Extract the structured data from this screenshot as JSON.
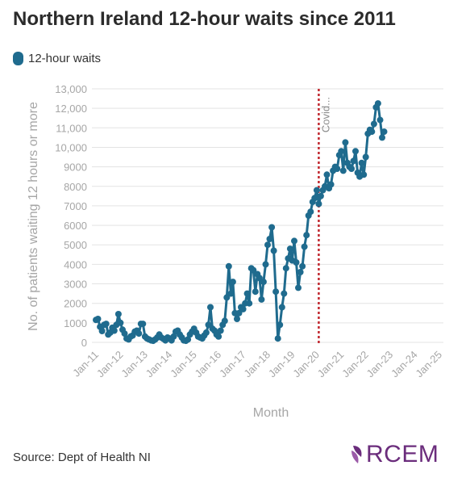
{
  "title": "Northern Ireland 12-hour waits since 2011",
  "legend": {
    "label": "12-hour waits"
  },
  "colors": {
    "series": "#1f6b8e",
    "covid_line": "#c0262d",
    "grid": "#e3e3e3",
    "axis_text": "#a6a6a6",
    "logo": "#6b2d7c"
  },
  "footer": {
    "source": "Source: Dept of Health NI"
  },
  "logo": {
    "text": "RCEM",
    "icon": "rcem-leaf-icon"
  },
  "chart_data": {
    "type": "line",
    "title": "Northern Ireland 12-hour waits since 2011",
    "xlabel": "Month",
    "ylabel": "No. of patients waiting 12 hours or more",
    "ylim": [
      0,
      13000
    ],
    "yticks": [
      0,
      1000,
      2000,
      3000,
      4000,
      5000,
      6000,
      7000,
      8000,
      9000,
      10000,
      11000,
      12000,
      13000
    ],
    "ytick_labels": [
      "0",
      "1000",
      "2000",
      "3000",
      "4000",
      "5000",
      "6000",
      "7000",
      "8000",
      "9000",
      "10,000",
      "11,000",
      "12,000",
      "13,000"
    ],
    "xticks": [
      "Jan-11",
      "Jan-12",
      "Jan-13",
      "Jan-14",
      "Jan-15",
      "Jan-16",
      "Jan-17",
      "Jan-18",
      "Jan-19",
      "Jan-20",
      "Jan-21",
      "Jan-22",
      "Jan-23",
      "Jan-24",
      "Jan-25"
    ],
    "grid": true,
    "legend_position": "top-left",
    "annotation": {
      "x": "2020-03",
      "label": "Covid..."
    },
    "series": [
      {
        "name": "12-hour waits",
        "values": [
          1150,
          1200,
          800,
          580,
          900,
          950,
          400,
          500,
          750,
          600,
          900,
          1450,
          1000,
          650,
          450,
          200,
          150,
          300,
          350,
          550,
          600,
          450,
          950,
          950,
          300,
          200,
          150,
          100,
          80,
          150,
          250,
          400,
          250,
          180,
          100,
          250,
          200,
          100,
          300,
          550,
          600,
          400,
          250,
          100,
          80,
          150,
          400,
          550,
          700,
          500,
          300,
          250,
          200,
          350,
          500,
          900,
          1800,
          700,
          600,
          400,
          300,
          600,
          900,
          1100,
          2300,
          3900,
          2500,
          3100,
          1500,
          1200,
          1500,
          1800,
          1700,
          2000,
          2500,
          2000,
          3800,
          3700,
          2600,
          3500,
          3300,
          2200,
          3100,
          4000,
          5000,
          5300,
          5900,
          4700,
          2600,
          200,
          900,
          1800,
          2500,
          3800,
          4300,
          4800,
          4200,
          5200,
          4100,
          2800,
          3600,
          3900,
          4900,
          5500,
          6500,
          6700,
          7200,
          7400,
          7800,
          7100,
          7500,
          7800,
          8000,
          8600,
          7900,
          8100,
          8800,
          9000,
          8900,
          9600,
          9800,
          8800,
          10250,
          9200,
          9000,
          8900,
          9300,
          9800,
          8700,
          8500,
          9200,
          8600,
          9500,
          10700,
          10900,
          10800,
          11200,
          12050,
          12250,
          11400,
          10500,
          10800
        ]
      }
    ]
  }
}
